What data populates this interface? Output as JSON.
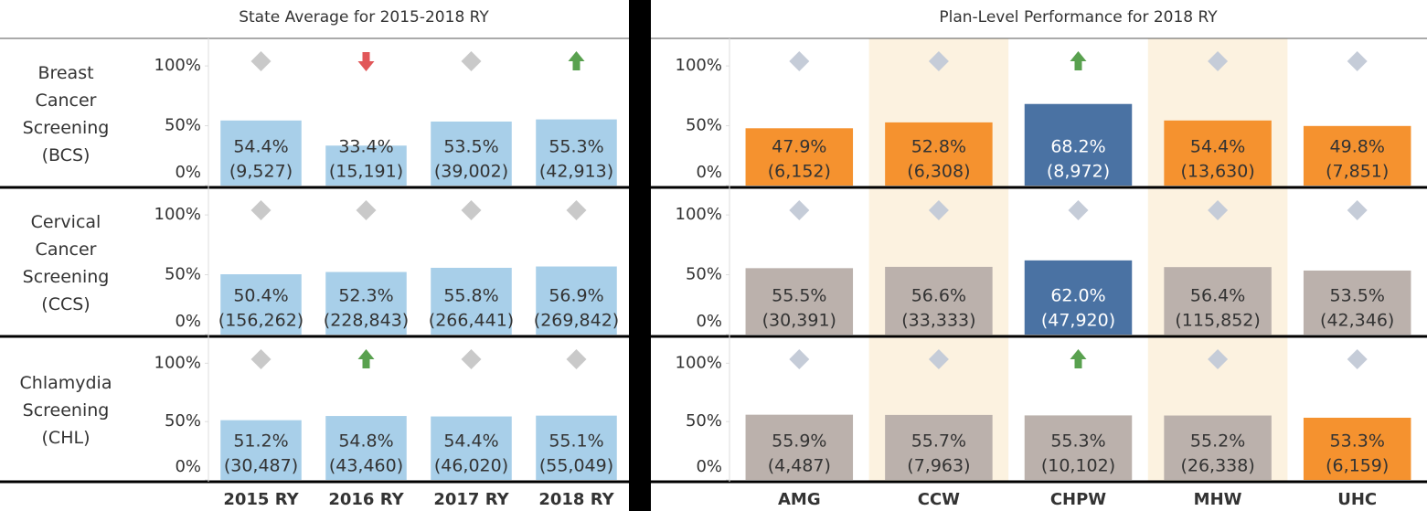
{
  "chart_data": [
    {
      "type": "bar",
      "title": "State Average for 2015-2018 RY",
      "categories": [
        "2015 RY",
        "2016 RY",
        "2017 RY",
        "2018 RY"
      ],
      "ylim": [
        0,
        123
      ],
      "yticks": [
        {
          "value": 0,
          "label": "0%"
        },
        {
          "value": 50,
          "label": "50%"
        },
        {
          "value": 100,
          "label": "100%"
        }
      ],
      "grid": false,
      "rows": [
        {
          "label": [
            "Breast",
            "Cancer",
            "Screening",
            "(BCS)"
          ],
          "values": [
            54.4,
            33.4,
            53.5,
            55.3
          ],
          "value_labels": [
            "54.4%",
            "33.4%",
            "53.5%",
            "55.3%"
          ],
          "count_labels": [
            "(9,527)",
            "(15,191)",
            "(39,002)",
            "(42,913)"
          ],
          "markers": [
            "diamond",
            "down",
            "diamond",
            "up"
          ],
          "colors": [
            "#a8cfe9",
            "#a8cfe9",
            "#a8cfe9",
            "#a8cfe9"
          ]
        },
        {
          "label": [
            "Cervical",
            "Cancer",
            "Screening",
            "(CCS)"
          ],
          "values": [
            50.4,
            52.3,
            55.8,
            56.9
          ],
          "value_labels": [
            "50.4%",
            "52.3%",
            "55.8%",
            "56.9%"
          ],
          "count_labels": [
            "(156,262)",
            "(228,843)",
            "(266,441)",
            "(269,842)"
          ],
          "markers": [
            "diamond",
            "diamond",
            "diamond",
            "diamond"
          ],
          "colors": [
            "#a8cfe9",
            "#a8cfe9",
            "#a8cfe9",
            "#a8cfe9"
          ]
        },
        {
          "label": [
            "Chlamydia",
            "Screening",
            "(CHL)"
          ],
          "values": [
            51.2,
            54.8,
            54.4,
            55.1
          ],
          "value_labels": [
            "51.2%",
            "54.8%",
            "54.4%",
            "55.1%"
          ],
          "count_labels": [
            "(30,487)",
            "(43,460)",
            "(46,020)",
            "(55,049)"
          ],
          "markers": [
            "diamond",
            "up",
            "diamond",
            "diamond"
          ],
          "colors": [
            "#a8cfe9",
            "#a8cfe9",
            "#a8cfe9",
            "#a8cfe9"
          ]
        }
      ]
    },
    {
      "type": "bar",
      "title": "Plan-Level Performance for 2018 RY",
      "categories": [
        "AMG",
        "CCW",
        "CHPW",
        "MHW",
        "UHC"
      ],
      "ylim": [
        0,
        123
      ],
      "yticks": [
        {
          "value": 0,
          "label": "0%"
        },
        {
          "value": 50,
          "label": "50%"
        },
        {
          "value": 100,
          "label": "100%"
        }
      ],
      "grid": false,
      "rows": [
        {
          "values": [
            47.9,
            52.8,
            68.2,
            54.4,
            49.8
          ],
          "value_labels": [
            "47.9%",
            "52.8%",
            "68.2%",
            "54.4%",
            "49.8%"
          ],
          "count_labels": [
            "(6,152)",
            "(6,308)",
            "(8,972)",
            "(13,630)",
            "(7,851)"
          ],
          "markers": [
            "diamond",
            "diamond",
            "up",
            "diamond",
            "diamond"
          ],
          "colors": [
            "#f5922f",
            "#f5922f",
            "#4a72a3",
            "#f5922f",
            "#f5922f"
          ]
        },
        {
          "values": [
            55.5,
            56.6,
            62,
            56.4,
            53.5
          ],
          "value_labels": [
            "55.5%",
            "56.6%",
            "62.0%",
            "56.4%",
            "53.5%"
          ],
          "count_labels": [
            "(30,391)",
            "(33,333)",
            "(47,920)",
            "(115,852)",
            "(42,346)"
          ],
          "markers": [
            "diamond",
            "diamond",
            "diamond",
            "diamond",
            "diamond"
          ],
          "colors": [
            "#bbb1ac",
            "#bbb1ac",
            "#4a72a3",
            "#bbb1ac",
            "#bbb1ac"
          ]
        },
        {
          "values": [
            55.9,
            55.7,
            55.3,
            55.2,
            53.3
          ],
          "value_labels": [
            "55.9%",
            "55.7%",
            "55.3%",
            "55.2%",
            "53.3%"
          ],
          "count_labels": [
            "(4,487)",
            "(7,963)",
            "(10,102)",
            "(26,338)",
            "(6,159)"
          ],
          "markers": [
            "diamond",
            "diamond",
            "up",
            "diamond",
            "diamond"
          ],
          "colors": [
            "#bbb1ac",
            "#bbb1ac",
            "#bbb1ac",
            "#bbb1ac",
            "#f5922f"
          ]
        }
      ]
    }
  ]
}
